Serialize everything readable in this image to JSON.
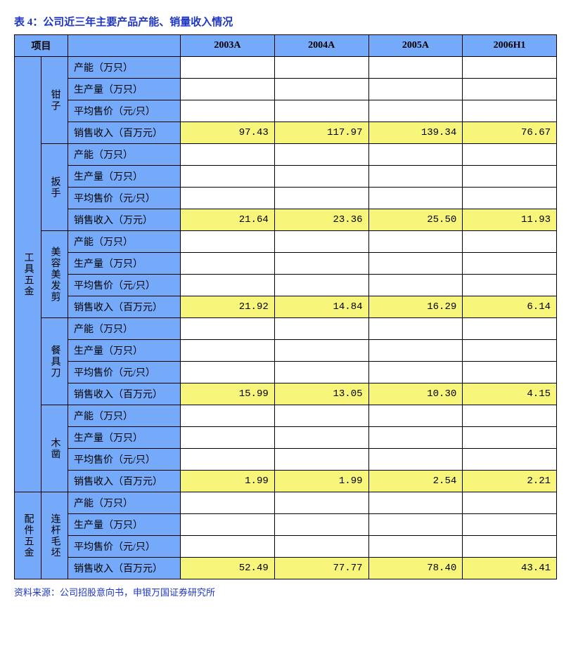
{
  "title": "表 4：公司近三年主要产品产能、销量收入情况",
  "source": "资料来源：公司招股意向书，申银万国证券研究所",
  "colors": {
    "header_bg": "#75a9f9",
    "highlight_bg": "#f7f57a",
    "title_color": "#1f36c4",
    "border": "#000000",
    "cell_bg": "#ffffff"
  },
  "headers": {
    "project": "项目",
    "y2003": "2003A",
    "y2004": "2004A",
    "y2005": "2005A",
    "y2006h1": "2006H1"
  },
  "metrics": {
    "capacity": "产能（万只）",
    "production": "生产量（万只）",
    "avg_price": "平均售价（元/只）",
    "revenue_m": "销售收入（百万元）",
    "revenue_w": "销售收入（万元）"
  },
  "categories": {
    "tool_hardware": "工具五金",
    "part_hardware": "配件五金"
  },
  "products": {
    "pliers": "钳子",
    "wrench": "扳手",
    "beauty_scissors": "美容美发剪",
    "table_knife": "餐具刀",
    "wood_chisel": "木凿",
    "rod_blank": "连杆毛坯"
  },
  "values": {
    "pliers_rev": {
      "y2003": "97.43",
      "y2004": "117.97",
      "y2005": "139.34",
      "y2006h1": "76.67"
    },
    "wrench_rev": {
      "y2003": "21.64",
      "y2004": "23.36",
      "y2005": "25.50",
      "y2006h1": "11.93"
    },
    "beauty_rev": {
      "y2003": "21.92",
      "y2004": "14.84",
      "y2005": "16.29",
      "y2006h1": "6.14"
    },
    "knife_rev": {
      "y2003": "15.99",
      "y2004": "13.05",
      "y2005": "10.30",
      "y2006h1": "4.15"
    },
    "chisel_rev": {
      "y2003": "1.99",
      "y2004": "1.99",
      "y2005": "2.54",
      "y2006h1": "2.21"
    },
    "rod_rev": {
      "y2003": "52.49",
      "y2004": "77.77",
      "y2005": "78.40",
      "y2006h1": "43.41"
    }
  }
}
